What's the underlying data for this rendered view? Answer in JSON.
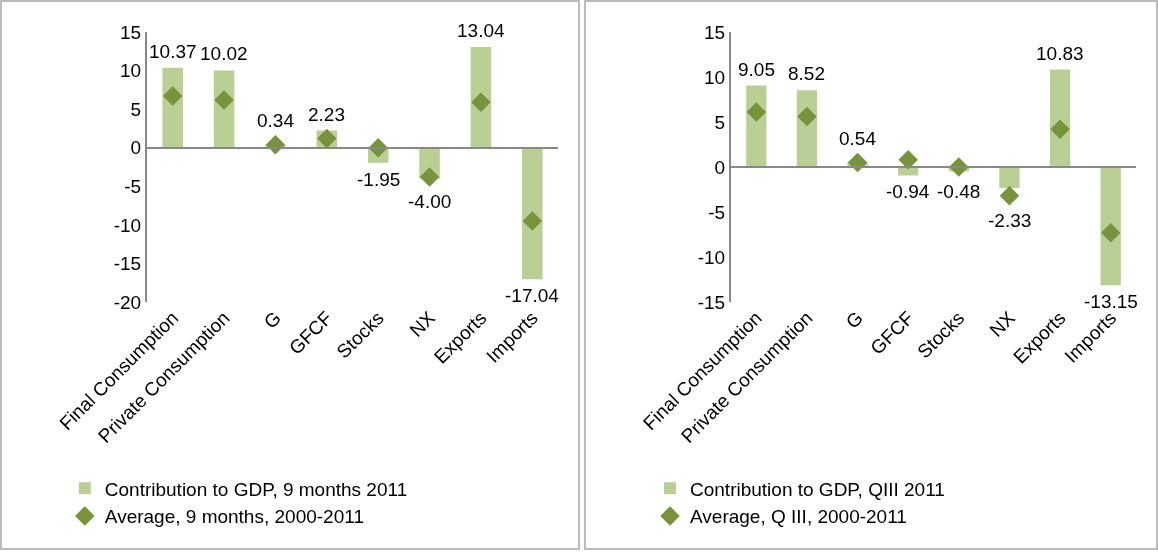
{
  "chart_data": [
    {
      "type": "bar",
      "categories": [
        "Final Consumption",
        "Private Consumption",
        "G",
        "GFCF",
        "Stocks",
        "NX",
        "Exports",
        "Imports"
      ],
      "ylim": [
        -20,
        15
      ],
      "yticks": [
        -20,
        -15,
        -10,
        -5,
        0,
        5,
        10,
        15
      ],
      "legend": "bottom left",
      "series": [
        {
          "name": "Contribution to GDP, 9 months 2011",
          "color": "#bacf93",
          "values": [
            10.37,
            10.02,
            0.34,
            2.23,
            -1.95,
            -4.0,
            13.04,
            -17.04
          ],
          "value_labels": [
            "10.37",
            "10.02",
            "0.34",
            "2.23",
            "-1.95",
            "-4.00",
            "13.04",
            "-17.04"
          ]
        },
        {
          "name": "Average, 9 months, 2000-2011",
          "type": "scatter",
          "marker": "diamond",
          "color": "#77933c",
          "values": [
            6.7,
            6.2,
            0.4,
            1.2,
            0,
            -3.8,
            5.9,
            -9.5
          ]
        }
      ]
    },
    {
      "type": "bar",
      "categories": [
        "Final Consumption",
        "Private Consumption",
        "G",
        "GFCF",
        "Stocks",
        "NX",
        "Exports",
        "Imports"
      ],
      "ylim": [
        -15,
        15
      ],
      "yticks": [
        -15,
        -10,
        -5,
        0,
        5,
        10,
        15
      ],
      "legend": "bottom left",
      "series": [
        {
          "name": "Contribution to GDP, QIII 2011",
          "color": "#bacf93",
          "values": [
            9.05,
            8.52,
            0.54,
            -0.94,
            -0.48,
            -2.33,
            10.83,
            -13.15
          ],
          "value_labels": [
            "9.05",
            "8.52",
            "0.54",
            "-0.94",
            "-0.48",
            "-2.33",
            "10.83",
            "-13.15"
          ]
        },
        {
          "name": "Average, Q III, 2000-2011",
          "type": "scatter",
          "marker": "diamond",
          "color": "#77933c",
          "values": [
            6.1,
            5.6,
            0.5,
            0.8,
            0,
            -3.2,
            4.2,
            -7.3
          ]
        }
      ]
    }
  ]
}
